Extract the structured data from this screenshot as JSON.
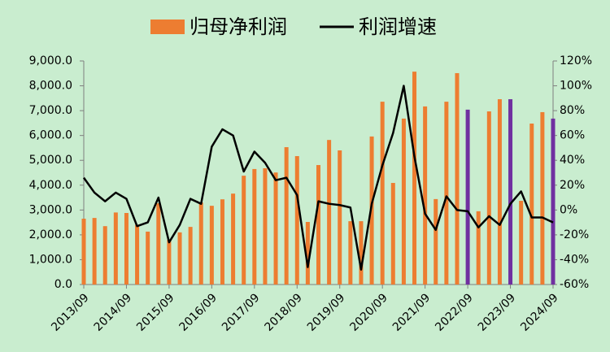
{
  "chart_data": {
    "type": "bar_line",
    "categories": [
      "2013/09",
      null,
      null,
      null,
      "2014/09",
      null,
      null,
      null,
      "2015/09",
      null,
      null,
      null,
      "2016/09",
      null,
      null,
      null,
      "2017/09",
      null,
      null,
      null,
      "2018/09",
      null,
      null,
      null,
      "2019/09",
      null,
      null,
      null,
      "2020/09",
      null,
      null,
      null,
      "2021/09",
      null,
      null,
      null,
      "2022/09",
      null,
      null,
      null,
      "2023/09",
      null,
      null,
      null,
      "2024/09"
    ],
    "series": [
      {
        "name": "归母净利润",
        "type": "bar",
        "color": "#ed7d31",
        "colors": [
          "#ed7d31",
          "#ed7d31",
          "#ed7d31",
          "#ed7d31",
          "#ed7d31",
          "#ed7d31",
          "#ed7d31",
          "#ed7d31",
          "#ed7d31",
          "#ed7d31",
          "#ed7d31",
          "#ed7d31",
          "#ed7d31",
          "#ed7d31",
          "#ed7d31",
          "#ed7d31",
          "#ed7d31",
          "#ed7d31",
          "#ed7d31",
          "#ed7d31",
          "#ed7d31",
          "#ed7d31",
          "#ed7d31",
          "#ed7d31",
          "#ed7d31",
          "#ed7d31",
          "#ed7d31",
          "#ed7d31",
          "#ed7d31",
          "#ed7d31",
          "#ed7d31",
          "#ed7d31",
          "#ed7d31",
          "#ed7d31",
          "#ed7d31",
          "#ed7d31",
          "#7030a0",
          "#ed7d31",
          "#ed7d31",
          "#ed7d31",
          "#7030a0",
          "#ed7d31",
          "#ed7d31",
          "#ed7d31",
          "#7030a0"
        ],
        "values": [
          2650,
          2680,
          2350,
          2900,
          2880,
          2400,
          2130,
          3270,
          1800,
          2100,
          2320,
          3300,
          3170,
          3430,
          3660,
          4380,
          4650,
          4680,
          4510,
          5530,
          5170,
          2520,
          4810,
          5820,
          5400,
          2550,
          2550,
          5960,
          7360,
          4090,
          6680,
          8570,
          7170,
          3440,
          7360,
          8510,
          7040,
          2950,
          6970,
          7460,
          7460,
          3370,
          6480,
          6940,
          6680
        ]
      },
      {
        "name": "利润增速",
        "type": "line",
        "color": "#000000",
        "axis": "y2",
        "values": [
          26,
          14,
          7,
          14,
          9,
          -13,
          -10,
          10,
          -26,
          -12,
          9,
          5,
          51,
          65,
          60,
          31,
          47,
          38,
          24,
          26,
          12,
          -46,
          7,
          5,
          4,
          2,
          -48,
          5,
          36,
          62,
          100,
          43,
          -3,
          -16,
          11,
          0,
          -1,
          -14,
          -5,
          -12,
          5,
          15,
          -6,
          -6,
          -10
        ]
      }
    ],
    "ylim": [
      0,
      9000
    ],
    "yticks": [
      {
        "value": 0,
        "label": "0.0"
      },
      {
        "value": 1000,
        "label": "1,000.0"
      },
      {
        "value": 2000,
        "label": "2,000.0"
      },
      {
        "value": 3000,
        "label": "3,000.0"
      },
      {
        "value": 4000,
        "label": "4,000.0"
      },
      {
        "value": 5000,
        "label": "5,000.0"
      },
      {
        "value": 6000,
        "label": "6,000.0"
      },
      {
        "value": 7000,
        "label": "7,000.0"
      },
      {
        "value": 8000,
        "label": "8,000.0"
      },
      {
        "value": 9000,
        "label": "9,000.0"
      }
    ],
    "y2lim": [
      -60,
      120
    ],
    "y2ticks": [
      {
        "value": -60,
        "label": "-60%"
      },
      {
        "value": -40,
        "label": "-40%"
      },
      {
        "value": -20,
        "label": "-20%"
      },
      {
        "value": 0,
        "label": "0%"
      },
      {
        "value": 20,
        "label": "20%"
      },
      {
        "value": 40,
        "label": "40%"
      },
      {
        "value": 60,
        "label": "60%"
      },
      {
        "value": 80,
        "label": "80%"
      },
      {
        "value": 100,
        "label": "100%"
      },
      {
        "value": 120,
        "label": "120%"
      }
    ],
    "legend": "top",
    "grid": false
  }
}
